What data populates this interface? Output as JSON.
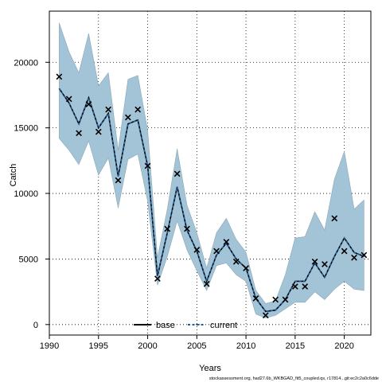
{
  "chart_data": {
    "type": "line",
    "xlabel": "Years",
    "ylabel": "Catch",
    "xlim": [
      1990,
      2022.7
    ],
    "ylim": [
      -800,
      23900
    ],
    "xticks": [
      1990,
      1995,
      2000,
      2005,
      2010,
      2015,
      2020
    ],
    "yticks": [
      0,
      5000,
      10000,
      15000,
      20000
    ],
    "x_tick_labels": [
      "1990",
      "1995",
      "2000",
      "2005",
      "2010",
      "2015",
      "2020"
    ],
    "y_tick_labels": [
      "0",
      "5000",
      "10000",
      "15000",
      "20000"
    ],
    "grid": true,
    "legend_position": "bottom-center",
    "years": [
      1991,
      1992,
      1993,
      1994,
      1995,
      1996,
      1997,
      1998,
      1999,
      2000,
      2001,
      2002,
      2003,
      2004,
      2005,
      2006,
      2007,
      2008,
      2009,
      2010,
      2011,
      2012,
      2013,
      2014,
      2015,
      2016,
      2017,
      2018,
      2019,
      2020,
      2021,
      2022
    ],
    "observed": [
      18900,
      17200,
      14600,
      16800,
      14700,
      16400,
      11000,
      15800,
      16400,
      12100,
      3500,
      7300,
      11500,
      7300,
      5700,
      3100,
      5600,
      6300,
      4800,
      4300,
      2000,
      700,
      1900,
      1900,
      2900,
      2900,
      4800,
      4600,
      8100,
      5600,
      5100,
      5300
    ],
    "series": [
      {
        "name": "base",
        "color": "#000000",
        "values": [
          18000,
          16900,
          15300,
          17300,
          15000,
          16100,
          11300,
          15300,
          15600,
          12100,
          3700,
          7000,
          10500,
          7200,
          5600,
          3300,
          5300,
          6200,
          5000,
          4300,
          2000,
          1000,
          1100,
          1900,
          3300,
          3300,
          4700,
          3600,
          5200,
          6600,
          5500,
          5200
        ]
      },
      {
        "name": "current",
        "color": "#1f5f9f",
        "values": [
          18000,
          16900,
          15300,
          17300,
          15000,
          16100,
          11300,
          15300,
          15600,
          12100,
          3700,
          7000,
          10500,
          7200,
          5600,
          3300,
          5300,
          6200,
          5000,
          4300,
          2000,
          1000,
          1100,
          1900,
          3300,
          3300,
          4700,
          3600,
          5200,
          6600,
          5500,
          5200
        ]
      }
    ],
    "band": {
      "color": "#a3c4d6",
      "upper": [
        23000,
        20800,
        19200,
        22200,
        18200,
        19200,
        13300,
        18700,
        19000,
        14800,
        5100,
        8800,
        13400,
        9100,
        7000,
        4300,
        7000,
        8100,
        6500,
        5500,
        2600,
        1600,
        1800,
        3800,
        6600,
        6700,
        8600,
        7200,
        11100,
        13200,
        8800,
        9500
      ],
      "lower": [
        14200,
        13300,
        12200,
        14000,
        11400,
        12700,
        8900,
        12600,
        13000,
        9400,
        3000,
        5200,
        7900,
        5700,
        4100,
        2600,
        4500,
        4700,
        3800,
        3300,
        800,
        500,
        700,
        1200,
        1700,
        1700,
        2500,
        1900,
        2700,
        3300,
        2700,
        2600
      ]
    }
  },
  "footer": {
    "text": "stockassessment.org, had27.6b_WKBGAD_fit5_coupled.qs, r17814...git:ec2c2a0c6dde"
  }
}
